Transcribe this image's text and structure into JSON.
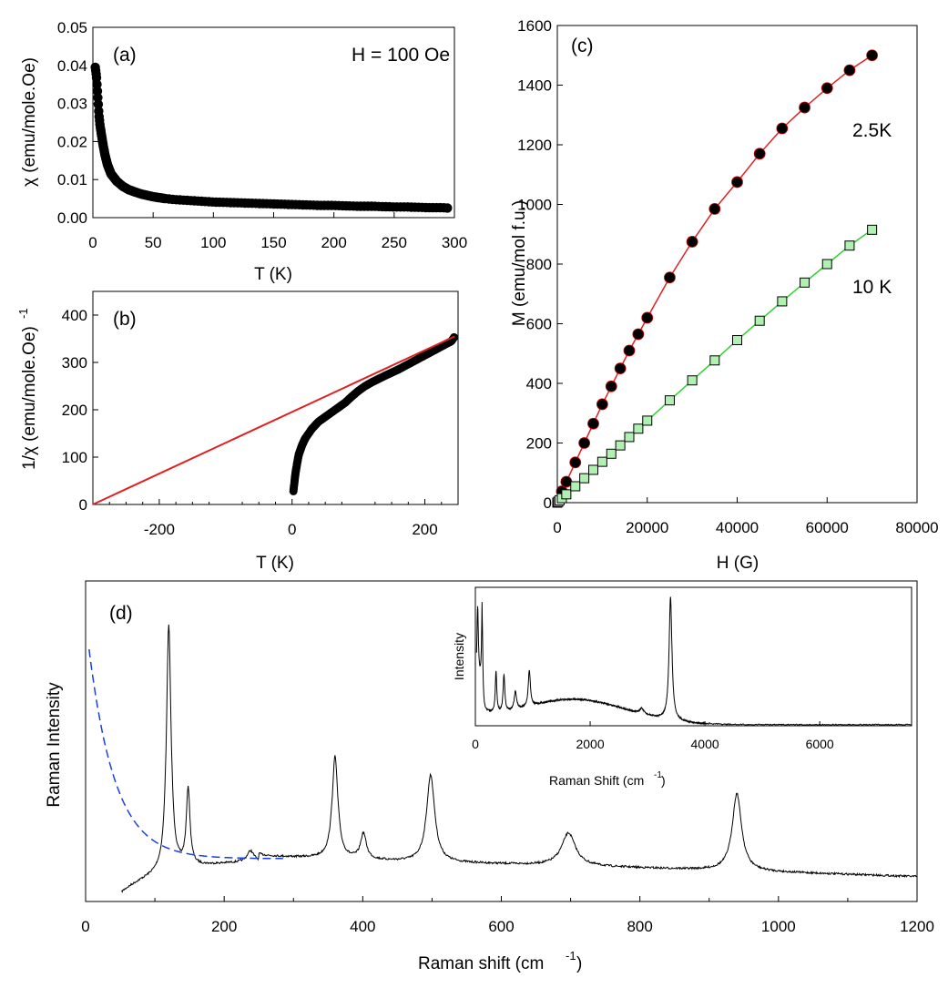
{
  "chart_data": [
    {
      "id": "a",
      "type": "scatter",
      "panel_label": "(a)",
      "annotation": "H = 100 Oe",
      "xlabel": "T (K)",
      "ylabel": "χ (emu/mole.Oe)",
      "xlim": [
        0,
        300
      ],
      "ylim": [
        0,
        0.05
      ],
      "xticks": [
        "0",
        "50",
        "100",
        "150",
        "200",
        "250",
        "300"
      ],
      "yticks": [
        "0.00",
        "0.01",
        "0.02",
        "0.03",
        "0.04",
        "0.05"
      ],
      "marker_color": "#000000",
      "series": [
        {
          "x": [
            2,
            3,
            4,
            5,
            6,
            8,
            10,
            12,
            15,
            20,
            25,
            30,
            40,
            50,
            60,
            70,
            80,
            90,
            100,
            110,
            120,
            130,
            140,
            150,
            160,
            170,
            180,
            190,
            200,
            210,
            220,
            230,
            240,
            250,
            260,
            270,
            280,
            290,
            296
          ],
          "y": [
            0.0395,
            0.037,
            0.032,
            0.027,
            0.024,
            0.02,
            0.0165,
            0.014,
            0.0115,
            0.0095,
            0.0082,
            0.0073,
            0.0062,
            0.0055,
            0.005,
            0.0047,
            0.0045,
            0.0043,
            0.0041,
            0.004,
            0.0039,
            0.0038,
            0.0037,
            0.0036,
            0.0035,
            0.0034,
            0.0033,
            0.0032,
            0.0032,
            0.0031,
            0.003,
            0.003,
            0.0029,
            0.0028,
            0.0028,
            0.0027,
            0.0026,
            0.0026,
            0.0025
          ]
        }
      ]
    },
    {
      "id": "b",
      "type": "line",
      "panel_label": "(b)",
      "xlabel": "T (K)",
      "ylabel": "1/χ (emu/mole.Oe)",
      "ylabel_superscript": "-1",
      "xlim": [
        -300,
        250
      ],
      "ylim": [
        0,
        450
      ],
      "xticks": [
        "-200",
        "0",
        "200"
      ],
      "yticks": [
        "0",
        "100",
        "200",
        "300",
        "400"
      ],
      "line_color": "#e02020",
      "series": [
        {
          "kind": "markers",
          "x": [
            2,
            3,
            5,
            8,
            10,
            15,
            20,
            30,
            40,
            50,
            60,
            70,
            80,
            90,
            100,
            110,
            120,
            140,
            160,
            180,
            200,
            220,
            240,
            245
          ],
          "y": [
            28,
            40,
            65,
            90,
            105,
            125,
            140,
            160,
            175,
            185,
            195,
            205,
            215,
            228,
            240,
            250,
            258,
            272,
            285,
            300,
            315,
            330,
            345,
            355
          ]
        },
        {
          "kind": "fit",
          "x": [
            -300,
            245
          ],
          "y": [
            0,
            355
          ]
        }
      ]
    },
    {
      "id": "c",
      "type": "line",
      "panel_label": "(c)",
      "xlabel": "H (G)",
      "ylabel": "M (emu/mol f.u.)",
      "xlim": [
        0,
        80000
      ],
      "ylim": [
        0,
        1600
      ],
      "xticks": [
        "0",
        "20000",
        "40000",
        "60000",
        "80000"
      ],
      "yticks": [
        "0",
        "200",
        "400",
        "600",
        "800",
        "1000",
        "1200",
        "1400",
        "1600"
      ],
      "series": [
        {
          "name": "2.5K",
          "marker": "filled-circle",
          "line_color": "#e02020",
          "x": [
            0,
            200,
            500,
            1000,
            2000,
            4000,
            6000,
            8000,
            10000,
            12000,
            14000,
            16000,
            18000,
            20000,
            25000,
            30000,
            35000,
            40000,
            45000,
            50000,
            55000,
            60000,
            65000,
            70000
          ],
          "y": [
            0,
            8,
            20,
            38,
            70,
            135,
            200,
            265,
            330,
            390,
            450,
            510,
            565,
            620,
            755,
            875,
            985,
            1075,
            1170,
            1255,
            1325,
            1390,
            1450,
            1500
          ]
        },
        {
          "name": "10 K",
          "marker": "open-square",
          "line_color": "#30d030",
          "marker_fill": "#b0f0b0",
          "x": [
            0,
            200,
            500,
            1000,
            2000,
            4000,
            6000,
            8000,
            10000,
            12000,
            14000,
            16000,
            18000,
            20000,
            25000,
            30000,
            35000,
            40000,
            45000,
            50000,
            55000,
            60000,
            65000,
            70000
          ],
          "y": [
            0,
            3,
            8,
            15,
            28,
            55,
            82,
            110,
            137,
            164,
            192,
            220,
            248,
            275,
            343,
            410,
            477,
            545,
            610,
            675,
            738,
            800,
            862,
            915
          ]
        }
      ]
    },
    {
      "id": "d",
      "type": "line",
      "panel_label": "(d)",
      "xlabel": "Raman shift (cm",
      "xlabel_superscript": "-1",
      "xlabel_suffix": ")",
      "ylabel": "Raman Intensity",
      "xlim": [
        0,
        1200
      ],
      "xticks": [
        "0",
        "200",
        "400",
        "600",
        "800",
        "1000",
        "1200"
      ],
      "baseline_color": "#1a3fe0",
      "peaks_cm1": [
        120,
        148,
        238,
        360,
        401,
        498,
        697,
        940
      ],
      "inset": {
        "xlabel": "Raman Shift (cm",
        "xlabel_superscript": "-1",
        "xlabel_suffix": ")",
        "ylabel": "Intensity",
        "xlim": [
          0,
          7600
        ],
        "xticks": [
          "0",
          "2000",
          "4000",
          "6000"
        ],
        "peaks_cm1": [
          120,
          360,
          498,
          697,
          940,
          3400
        ]
      }
    }
  ]
}
